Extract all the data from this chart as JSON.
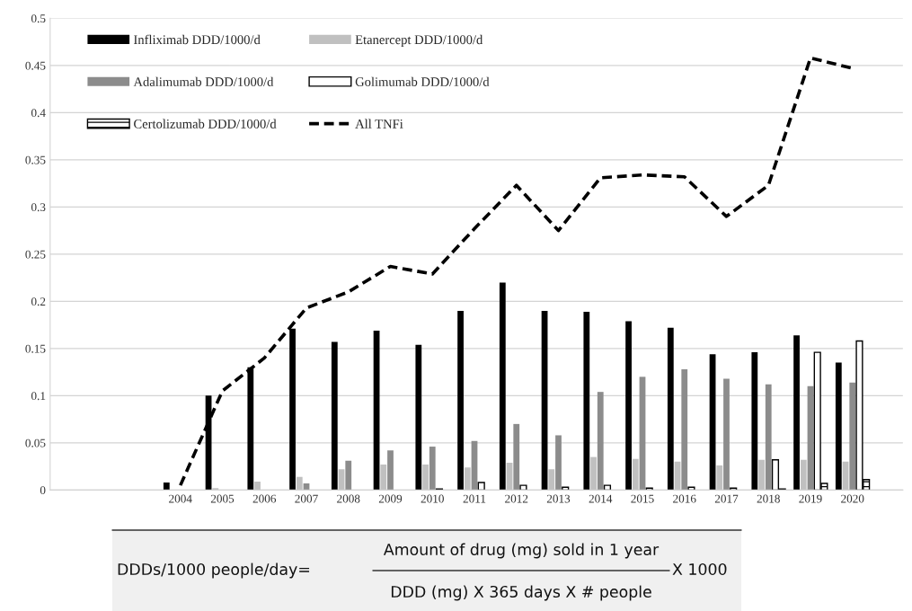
{
  "chart_data": {
    "type": "bar",
    "categories": [
      "2004",
      "2005",
      "2006",
      "2007",
      "2008",
      "2009",
      "2010",
      "2011",
      "2012",
      "2013",
      "2014",
      "2015",
      "2016",
      "2017",
      "2018",
      "2019",
      "2020"
    ],
    "series": [
      {
        "name": "Infliximab DDD/1000/d",
        "color": "#000000",
        "values": [
          0.008,
          0.1,
          0.13,
          0.171,
          0.157,
          0.169,
          0.154,
          0.19,
          0.22,
          0.19,
          0.189,
          0.179,
          0.172,
          0.144,
          0.146,
          0.164,
          0.135
        ]
      },
      {
        "name": "Etanercept DDD/1000/d",
        "color": "#c0c0c0",
        "values": [
          null,
          0.002,
          0.009,
          0.014,
          0.022,
          0.027,
          0.027,
          0.024,
          0.029,
          0.022,
          0.035,
          0.033,
          0.03,
          0.026,
          0.032,
          0.032,
          0.03
        ]
      },
      {
        "name": "Adalimumab DDD/1000/d",
        "color": "#8c8c8c",
        "values": [
          null,
          null,
          null,
          0.007,
          0.031,
          0.042,
          0.046,
          0.052,
          0.07,
          0.058,
          0.104,
          0.12,
          0.128,
          0.118,
          0.112,
          0.11,
          0.114
        ]
      },
      {
        "name": "Golimumab DDD/1000/d",
        "color": "#ffffff",
        "values": [
          null,
          null,
          null,
          null,
          null,
          null,
          0.001,
          0.008,
          0.005,
          0.003,
          0.005,
          0.002,
          0.003,
          0.002,
          0.032,
          0.146,
          0.158
        ]
      },
      {
        "name": "Certolizumab DDD/1000/d",
        "color": "#000000",
        "values": [
          null,
          null,
          null,
          null,
          null,
          null,
          null,
          null,
          null,
          null,
          null,
          null,
          null,
          null,
          0.001,
          0.007,
          0.011
        ]
      },
      {
        "name": "All TNFi",
        "type": "line",
        "line_style": "dashed",
        "color": "#000000",
        "values": [
          0.005,
          0.105,
          0.14,
          0.193,
          0.21,
          0.237,
          0.229,
          0.277,
          0.323,
          0.275,
          0.331,
          0.334,
          0.332,
          0.29,
          0.323,
          0.458,
          0.447
        ]
      }
    ],
    "ylim": [
      0,
      0.5
    ],
    "yticks": [
      0,
      0.05,
      0.1,
      0.15,
      0.2,
      0.25,
      0.3,
      0.35,
      0.4,
      0.45,
      0.5
    ],
    "grid": "y",
    "legend": "top left",
    "annotations": [
      "DDDs/1000 people/day=",
      "Amount of drug (mg) sold in 1 year",
      "DDD (mg) X 365 days X # people",
      "X 1000"
    ]
  }
}
